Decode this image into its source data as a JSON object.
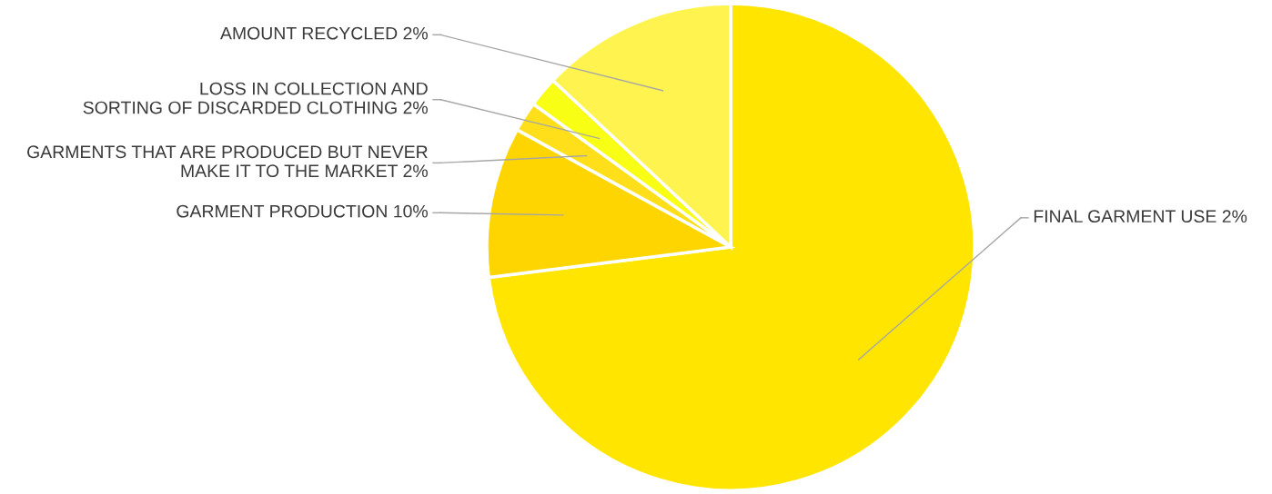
{
  "chart_data": {
    "type": "pie",
    "categories": [
      "FINAL GARMENT USE 2%",
      "GARMENT PRODUCTION 10%",
      "GARMENTS THAT ARE PRODUCED BUT NEVER\nMAKE IT TO THE MARKET 2%",
      "LOSS IN COLLECTION AND\nSORTING OF DISCARDED CLOTHING 2%",
      "AMOUNT RECYCLED 2%"
    ],
    "values": [
      73,
      10,
      2,
      2,
      13
    ],
    "colors": [
      "#ffe500",
      "#ffd500",
      "#ffdf1a",
      "#f9ff14",
      "#fff44f"
    ]
  }
}
